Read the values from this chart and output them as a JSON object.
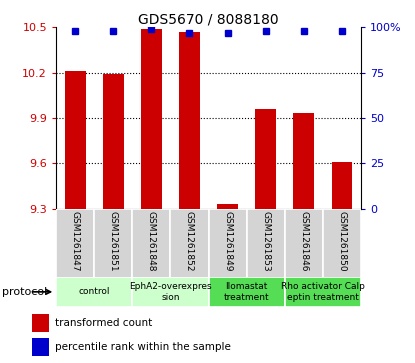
{
  "title": "GDS5670 / 8088180",
  "samples": [
    "GSM1261847",
    "GSM1261851",
    "GSM1261848",
    "GSM1261852",
    "GSM1261849",
    "GSM1261853",
    "GSM1261846",
    "GSM1261850"
  ],
  "bar_values": [
    10.21,
    10.19,
    10.49,
    10.47,
    9.33,
    9.96,
    9.93,
    9.61
  ],
  "dot_values": [
    98,
    98,
    99,
    97,
    97,
    98,
    98,
    98
  ],
  "ylim_left": [
    9.3,
    10.5
  ],
  "ylim_right": [
    0,
    100
  ],
  "yticks_left": [
    9.3,
    9.6,
    9.9,
    10.2,
    10.5
  ],
  "yticks_right": [
    0,
    25,
    50,
    75,
    100
  ],
  "bar_color": "#cc0000",
  "dot_color": "#0000cc",
  "baseline": 9.3,
  "groups": [
    {
      "label": "control",
      "start": 0,
      "end": 2,
      "color": "#ccffcc"
    },
    {
      "label": "EphA2-overexpres\nsion",
      "start": 2,
      "end": 4,
      "color": "#ccffcc"
    },
    {
      "label": "Ilomastat\ntreatment",
      "start": 4,
      "end": 6,
      "color": "#55dd55"
    },
    {
      "label": "Rho activator Calp\neptin treatment",
      "start": 6,
      "end": 8,
      "color": "#55dd55"
    }
  ],
  "legend_bar_label": "transformed count",
  "legend_dot_label": "percentile rank within the sample",
  "xlabel_protocol": "protocol",
  "tick_color_left": "#cc0000",
  "tick_color_right": "#0000cc",
  "sample_bg": "#d4d4d4",
  "grid_yticks": [
    9.6,
    9.9,
    10.2
  ]
}
